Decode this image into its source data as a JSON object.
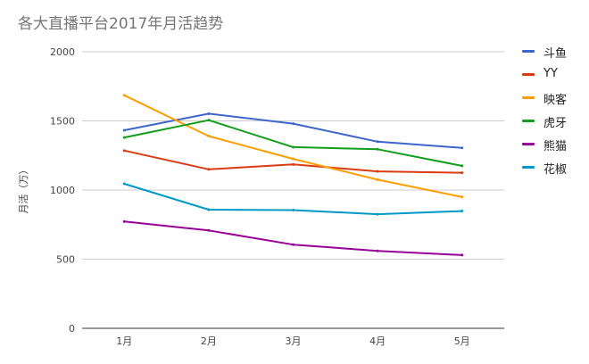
{
  "chart_data": {
    "type": "line",
    "title": "各大直播平台2017年月活趋势",
    "ylabel": "月活（万）",
    "xlabel": "",
    "categories": [
      "1月",
      "2月",
      "3月",
      "4月",
      "5月"
    ],
    "ylim": [
      0,
      2000
    ],
    "yticks": [
      "0",
      "500",
      "1000",
      "1500",
      "2000"
    ],
    "grid": true,
    "legend_position": "right",
    "series": [
      {
        "name": "斗鱼",
        "color": "#3d66cc",
        "values": [
          1432,
          1552,
          1480,
          1350,
          1305
        ]
      },
      {
        "name": "YY",
        "color": "#db3b12",
        "values": [
          1285,
          1150,
          1185,
          1135,
          1125
        ]
      },
      {
        "name": "映客",
        "color": "#ff9d00",
        "values": [
          1685,
          1390,
          1225,
          1075,
          950
        ]
      },
      {
        "name": "虎牙",
        "color": "#129e1a",
        "values": [
          1380,
          1505,
          1310,
          1295,
          1175
        ]
      },
      {
        "name": "熊猫",
        "color": "#990099",
        "values": [
          772,
          708,
          605,
          560,
          530
        ]
      },
      {
        "name": "花椒",
        "color": "#0099c6",
        "values": [
          1045,
          858,
          855,
          825,
          848
        ]
      }
    ]
  }
}
